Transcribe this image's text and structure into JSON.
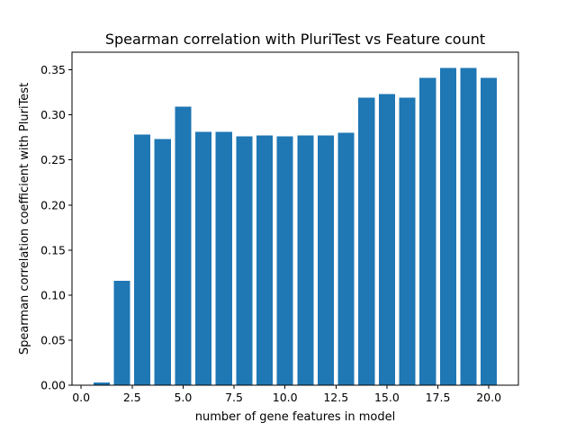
{
  "chart_data": {
    "type": "bar",
    "title": "Spearman correlation with PluriTest vs Feature count",
    "xlabel": "number of gene features in model",
    "ylabel": "Spearman correlation coefficient with PluriTest",
    "x": [
      1,
      2,
      3,
      4,
      5,
      6,
      7,
      8,
      9,
      10,
      11,
      12,
      13,
      14,
      15,
      16,
      17,
      18,
      19,
      20
    ],
    "values": [
      0.003,
      0.116,
      0.278,
      0.273,
      0.309,
      0.281,
      0.281,
      0.276,
      0.277,
      0.276,
      0.277,
      0.277,
      0.28,
      0.319,
      0.323,
      0.319,
      0.341,
      0.352,
      0.352,
      0.341
    ],
    "xlim": [
      -0.45,
      21.45
    ],
    "ylim": [
      0,
      0.3696
    ],
    "xticks": [
      0.0,
      2.5,
      5.0,
      7.5,
      10.0,
      12.5,
      15.0,
      17.5,
      20.0
    ],
    "xtick_labels": [
      "0.0",
      "2.5",
      "5.0",
      "7.5",
      "10.0",
      "12.5",
      "15.0",
      "17.5",
      "20.0"
    ],
    "yticks": [
      0.0,
      0.05,
      0.1,
      0.15,
      0.2,
      0.25,
      0.3,
      0.35
    ],
    "ytick_labels": [
      "0.00",
      "0.05",
      "0.10",
      "0.15",
      "0.20",
      "0.25",
      "0.30",
      "0.35"
    ],
    "bar_width": 0.8,
    "bar_color": "#1f77b4",
    "grid": false,
    "legend": "none"
  }
}
